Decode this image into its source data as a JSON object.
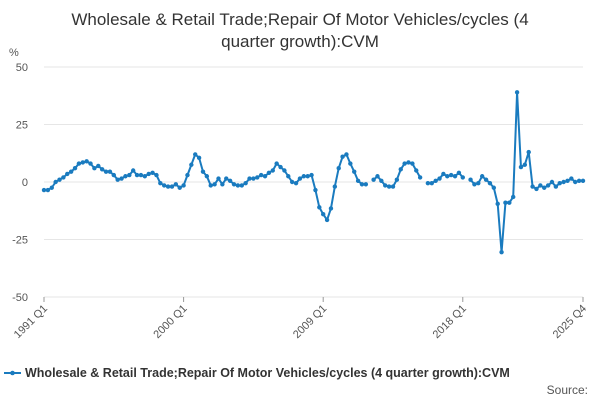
{
  "chart_data": {
    "type": "line",
    "title_line1": "Wholesale & Retail Trade;Repair Of Motor Vehicles/cycles (4",
    "title_line2": "quarter growth):CVM",
    "ylabel": "%",
    "xlabel": "",
    "ylim": [
      -50,
      50
    ],
    "yticks": [
      50,
      25,
      0,
      -25,
      -50
    ],
    "xticks": [
      {
        "label": "1991 Q1",
        "x": 1991.0
      },
      {
        "label": "2000 Q1",
        "x": 2000.0
      },
      {
        "label": "2009 Q1",
        "x": 2009.0
      },
      {
        "label": "2018 Q1",
        "x": 2018.0
      },
      {
        "label": "2025 Q4",
        "x": 2025.75
      }
    ],
    "xlim": [
      1991.0,
      2025.75
    ],
    "grid": true,
    "legend_position": "bottom",
    "color": "#1a7bbf",
    "series": [
      {
        "name": "Wholesale & Retail Trade;Repair Of Motor Vehicles/cycles (4 quarter growth):CVM",
        "segments": [
          [
            [
              "1991 Q1",
              -3.5
            ],
            [
              "1991 Q2",
              -3.5
            ],
            [
              "1991 Q3",
              -2.5
            ],
            [
              "1991 Q4",
              0.0
            ],
            [
              "1992 Q1",
              1.0
            ],
            [
              "1992 Q2",
              2.0
            ],
            [
              "1992 Q3",
              3.5
            ],
            [
              "1992 Q4",
              4.5
            ],
            [
              "1993 Q1",
              6.0
            ],
            [
              "1993 Q2",
              8.0
            ],
            [
              "1993 Q3",
              8.5
            ],
            [
              "1993 Q4",
              9.0
            ],
            [
              "1994 Q1",
              8.0
            ],
            [
              "1994 Q2",
              6.0
            ],
            [
              "1994 Q3",
              7.0
            ],
            [
              "1994 Q4",
              5.5
            ],
            [
              "1995 Q1",
              4.5
            ],
            [
              "1995 Q2",
              4.5
            ],
            [
              "1995 Q3",
              3.0
            ],
            [
              "1995 Q4",
              1.0
            ],
            [
              "1996 Q1",
              1.5
            ],
            [
              "1996 Q2",
              2.5
            ],
            [
              "1996 Q3",
              3.0
            ],
            [
              "1996 Q4",
              5.0
            ],
            [
              "1997 Q1",
              3.0
            ],
            [
              "1997 Q2",
              3.0
            ],
            [
              "1997 Q3",
              2.5
            ],
            [
              "1997 Q4",
              3.5
            ],
            [
              "1998 Q1",
              4.0
            ],
            [
              "1998 Q2",
              3.0
            ],
            [
              "1998 Q3",
              -0.5
            ],
            [
              "1998 Q4",
              -1.5
            ],
            [
              "1999 Q1",
              -2.0
            ],
            [
              "1999 Q2",
              -2.0
            ],
            [
              "1999 Q3",
              -1.0
            ],
            [
              "1999 Q4",
              -2.5
            ],
            [
              "2000 Q1",
              -1.5
            ],
            [
              "2000 Q2",
              3.0
            ],
            [
              "2000 Q3",
              7.5
            ],
            [
              "2000 Q4",
              12.0
            ],
            [
              "2001 Q1",
              10.5
            ],
            [
              "2001 Q2",
              4.5
            ],
            [
              "2001 Q3",
              2.5
            ],
            [
              "2001 Q4",
              -1.5
            ],
            [
              "2002 Q1",
              -1.0
            ],
            [
              "2002 Q2",
              1.5
            ],
            [
              "2002 Q3",
              -1.0
            ],
            [
              "2002 Q4",
              1.5
            ],
            [
              "2003 Q1",
              0.5
            ],
            [
              "2003 Q2",
              -1.0
            ],
            [
              "2003 Q3",
              -1.5
            ],
            [
              "2003 Q4",
              -1.5
            ],
            [
              "2004 Q1",
              -0.5
            ],
            [
              "2004 Q2",
              1.5
            ],
            [
              "2004 Q3",
              1.5
            ],
            [
              "2004 Q4",
              2.0
            ],
            [
              "2005 Q1",
              3.0
            ],
            [
              "2005 Q2",
              2.5
            ],
            [
              "2005 Q3",
              4.0
            ],
            [
              "2005 Q4",
              5.0
            ],
            [
              "2006 Q1",
              8.0
            ],
            [
              "2006 Q2",
              6.5
            ],
            [
              "2006 Q3",
              5.0
            ],
            [
              "2006 Q4",
              2.5
            ],
            [
              "2007 Q1",
              0.0
            ],
            [
              "2007 Q2",
              -0.5
            ],
            [
              "2007 Q3",
              1.5
            ],
            [
              "2007 Q4",
              2.5
            ],
            [
              "2008 Q1",
              2.5
            ],
            [
              "2008 Q2",
              3.0
            ],
            [
              "2008 Q3",
              -3.5
            ],
            [
              "2008 Q4",
              -11.0
            ],
            [
              "2009 Q1",
              -14.0
            ],
            [
              "2009 Q2",
              -16.5
            ],
            [
              "2009 Q3",
              -11.5
            ],
            [
              "2009 Q4",
              -2.0
            ],
            [
              "2010 Q1",
              6.0
            ],
            [
              "2010 Q2",
              11.0
            ],
            [
              "2010 Q3",
              12.0
            ],
            [
              "2010 Q4",
              8.0
            ],
            [
              "2011 Q1",
              4.5
            ],
            [
              "2011 Q2",
              0.5
            ],
            [
              "2011 Q3",
              -1.0
            ],
            [
              "2011 Q4",
              -1.0
            ]
          ],
          [
            [
              "2012 Q2",
              1.0
            ],
            [
              "2012 Q3",
              2.5
            ],
            [
              "2012 Q4",
              0.5
            ],
            [
              "2013 Q1",
              -1.5
            ],
            [
              "2013 Q2",
              -2.0
            ],
            [
              "2013 Q3",
              -2.0
            ],
            [
              "2013 Q4",
              1.0
            ],
            [
              "2014 Q1",
              5.5
            ],
            [
              "2014 Q2",
              8.0
            ],
            [
              "2014 Q3",
              8.5
            ],
            [
              "2014 Q4",
              8.0
            ],
            [
              "2015 Q1",
              5.0
            ],
            [
              "2015 Q2",
              2.0
            ]
          ],
          [
            [
              "2015 Q4",
              -0.5
            ],
            [
              "2016 Q1",
              -0.5
            ],
            [
              "2016 Q2",
              0.5
            ],
            [
              "2016 Q3",
              1.5
            ],
            [
              "2016 Q4",
              3.5
            ],
            [
              "2017 Q1",
              2.5
            ],
            [
              "2017 Q2",
              3.0
            ],
            [
              "2017 Q3",
              2.5
            ],
            [
              "2017 Q4",
              4.0
            ],
            [
              "2018 Q1",
              2.0
            ]
          ],
          [
            [
              "2018 Q3",
              1.0
            ],
            [
              "2018 Q4",
              -1.0
            ],
            [
              "2019 Q1",
              -0.5
            ],
            [
              "2019 Q2",
              2.5
            ],
            [
              "2019 Q3",
              1.0
            ],
            [
              "2019 Q4",
              -0.5
            ],
            [
              "2020 Q1",
              -2.5
            ],
            [
              "2020 Q2",
              -9.5
            ],
            [
              "2020 Q3",
              -30.5
            ],
            [
              "2020 Q4",
              -9.0
            ],
            [
              "2021 Q1",
              -9.0
            ],
            [
              "2021 Q2",
              -6.5
            ],
            [
              "2021 Q3",
              39.0
            ],
            [
              "2021 Q4",
              6.5
            ],
            [
              "2022 Q1",
              7.5
            ],
            [
              "2022 Q2",
              13.0
            ],
            [
              "2022 Q3",
              -2.0
            ],
            [
              "2022 Q4",
              -3.0
            ],
            [
              "2023 Q1",
              -1.5
            ],
            [
              "2023 Q2",
              -2.5
            ],
            [
              "2023 Q3",
              -1.5
            ],
            [
              "2023 Q4",
              0.0
            ],
            [
              "2024 Q1",
              -2.0
            ],
            [
              "2024 Q2",
              -0.5
            ],
            [
              "2024 Q3",
              0.0
            ],
            [
              "2024 Q4",
              0.5
            ],
            [
              "2025 Q1",
              1.5
            ],
            [
              "2025 Q2",
              0.0
            ],
            [
              "2025 Q3",
              0.5
            ],
            [
              "2025 Q4",
              0.5
            ]
          ]
        ]
      }
    ]
  },
  "legend": {
    "label": "Wholesale & Retail Trade;Repair Of Motor Vehicles/cycles (4 quarter growth):CVM"
  },
  "source": {
    "label": "Source:"
  }
}
